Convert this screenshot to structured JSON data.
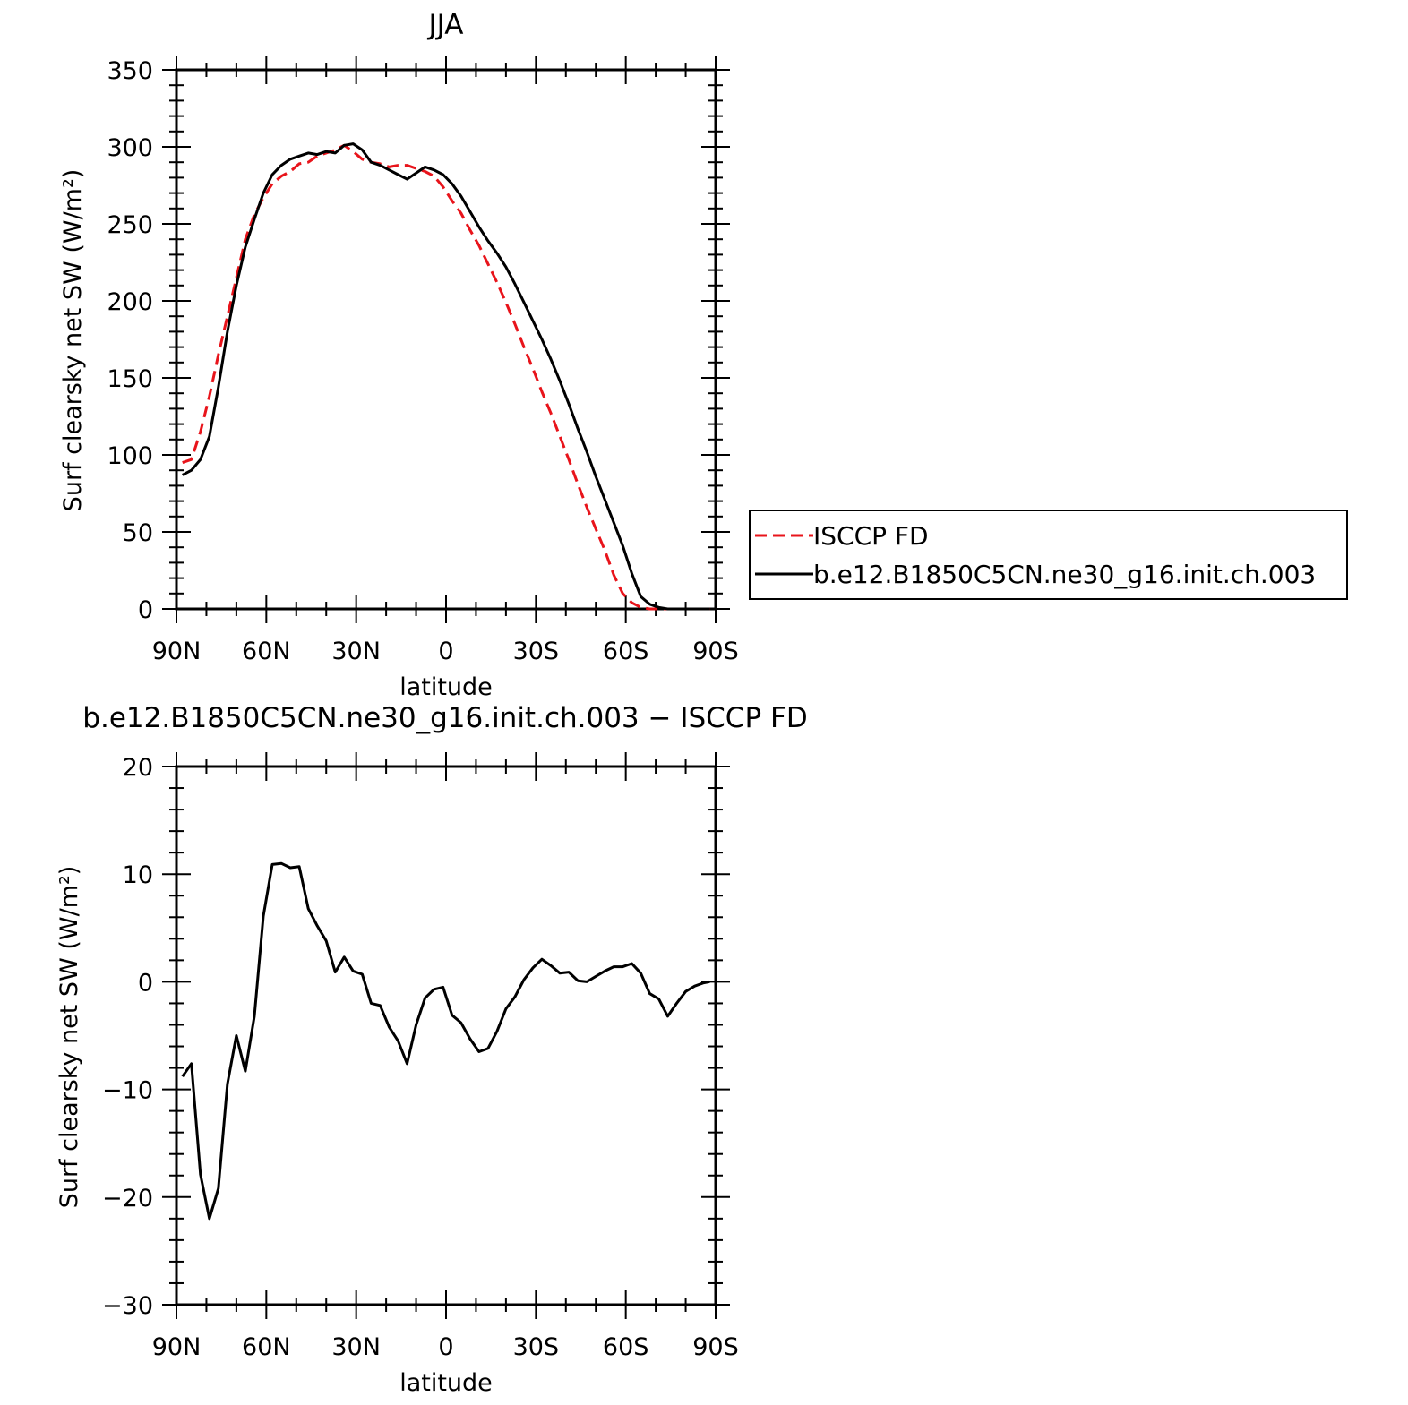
{
  "chart_data": [
    {
      "type": "line",
      "title": "JJA",
      "xlabel": "latitude",
      "ylabel": "Surf clearsky net SW (W/m²)",
      "x_ticks": [
        "90N",
        "60N",
        "30N",
        "0",
        "30S",
        "60S",
        "90S"
      ],
      "y_ticks": [
        "0",
        "50",
        "100",
        "150",
        "200",
        "250",
        "300",
        "350"
      ],
      "xlim": [
        90,
        -90
      ],
      "ylim": [
        0,
        350
      ],
      "legend_position": "right",
      "series": [
        {
          "name": "ISCCP FD",
          "color": "#e8141b",
          "dash": "dashed",
          "x": [
            88,
            85,
            82,
            79,
            76,
            73,
            70,
            67,
            64,
            61,
            58,
            55,
            52,
            49,
            46,
            43,
            40,
            37,
            34,
            31,
            28,
            25,
            22,
            19,
            16,
            13,
            10,
            7,
            4,
            1,
            -2,
            -5,
            -8,
            -11,
            -14,
            -17,
            -20,
            -23,
            -26,
            -29,
            -32,
            -35,
            -38,
            -41,
            -44,
            -47,
            -50,
            -53,
            -56,
            -59,
            -62,
            -65,
            -68,
            -71,
            -74,
            -77,
            -80,
            -83,
            -86,
            -88
          ],
          "y": [
            95,
            97,
            115,
            138,
            165,
            190,
            215,
            240,
            256,
            267,
            276,
            281,
            284,
            289,
            290,
            294,
            296,
            298,
            301,
            297,
            292,
            290,
            289,
            287,
            288,
            288,
            286,
            284,
            281,
            274,
            265,
            257,
            246,
            236,
            224,
            212,
            199,
            185,
            170,
            156,
            141,
            127,
            112,
            97,
            81,
            66,
            52,
            38,
            22,
            10,
            4,
            1,
            0,
            0,
            0,
            0,
            0,
            0,
            0,
            0
          ]
        },
        {
          "name": "b.e12.B1850C5CN.ne30_g16.init.ch.003",
          "color": "#000000",
          "dash": "solid",
          "x": [
            88,
            85,
            82,
            79,
            76,
            73,
            70,
            67,
            64,
            61,
            58,
            55,
            52,
            49,
            46,
            43,
            40,
            37,
            34,
            31,
            28,
            25,
            22,
            19,
            16,
            13,
            10,
            7,
            4,
            1,
            -2,
            -5,
            -8,
            -11,
            -14,
            -17,
            -20,
            -23,
            -26,
            -29,
            -32,
            -35,
            -38,
            -41,
            -44,
            -47,
            -50,
            -53,
            -56,
            -59,
            -62,
            -65,
            -68,
            -71,
            -74,
            -77,
            -80,
            -83,
            -86,
            -88
          ],
          "y": [
            87,
            90,
            97,
            112,
            144,
            180,
            210,
            235,
            253,
            270,
            282,
            288,
            292,
            294,
            296,
            295,
            297,
            296,
            301,
            302,
            298,
            290,
            288,
            285,
            282,
            279,
            283,
            287,
            285,
            282,
            276,
            268,
            258,
            248,
            239,
            231,
            222,
            211,
            199,
            187,
            175,
            162,
            148,
            133,
            117,
            102,
            86,
            71,
            56,
            41,
            23,
            8,
            3,
            1,
            0,
            0,
            0,
            0,
            0,
            0
          ]
        }
      ]
    },
    {
      "type": "line",
      "title": "b.e12.B1850C5CN.ne30_g16.init.ch.003 − ISCCP FD",
      "xlabel": "latitude",
      "ylabel": "Surf clearsky net SW (W/m²)",
      "x_ticks": [
        "90N",
        "60N",
        "30N",
        "0",
        "30S",
        "60S",
        "90S"
      ],
      "y_ticks": [
        "−30",
        "−20",
        "−10",
        "0",
        "10",
        "20"
      ],
      "xlim": [
        90,
        -90
      ],
      "ylim": [
        -30,
        20
      ],
      "series": [
        {
          "color": "#000000",
          "dash": "solid",
          "x": [
            88,
            85,
            82,
            79,
            76,
            73,
            70,
            67,
            64,
            61,
            58,
            55,
            52,
            49,
            46,
            43,
            40,
            37,
            34,
            31,
            28,
            25,
            22,
            19,
            16,
            13,
            10,
            7,
            4,
            1,
            -2,
            -5,
            -8,
            -11,
            -14,
            -17,
            -20,
            -23,
            -26,
            -29,
            -32,
            -35,
            -38,
            -41,
            -44,
            -47,
            -50,
            -53,
            -56,
            -59,
            -62,
            -65,
            -68,
            -71,
            -74,
            -77,
            -80,
            -83,
            -86,
            -88
          ],
          "y": [
            -8.8,
            -7.6,
            -17.9,
            -22.0,
            -19.2,
            -9.5,
            -5.0,
            -8.3,
            -3.2,
            6.1,
            10.9,
            11.0,
            10.6,
            10.7,
            6.8,
            5.2,
            3.8,
            0.9,
            2.3,
            1.0,
            0.7,
            -2.0,
            -2.2,
            -4.2,
            -5.5,
            -7.6,
            -4.0,
            -1.5,
            -0.7,
            -0.5,
            -3.1,
            -3.8,
            -5.3,
            -6.5,
            -6.2,
            -4.6,
            -2.5,
            -1.4,
            0.2,
            1.3,
            2.1,
            1.5,
            0.8,
            0.9,
            0.1,
            0.0,
            0.5,
            1.0,
            1.4,
            1.4,
            1.7,
            0.8,
            -1.1,
            -1.6,
            -3.2,
            -2.0,
            -0.9,
            -0.4,
            -0.1,
            0.0
          ]
        }
      ]
    }
  ]
}
